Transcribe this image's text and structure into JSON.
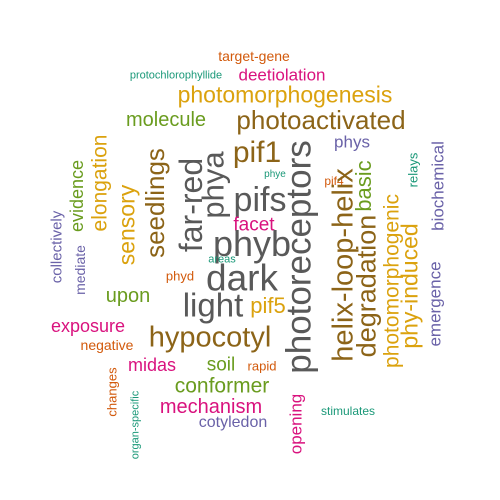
{
  "colors": {
    "gray": "#595959",
    "brown": "#8C6418",
    "gold": "#DBA20E",
    "green": "#6A9C1F",
    "orange": "#D2590B",
    "teal": "#1A9878",
    "purple": "#6A62A8",
    "magenta": "#D9127E"
  },
  "words": [
    {
      "text": "target-gene",
      "color": "orange",
      "rotated": false
    },
    {
      "text": "protochlorophyllide",
      "color": "teal",
      "rotated": false
    },
    {
      "text": "deetiolation",
      "color": "magenta",
      "rotated": false
    },
    {
      "text": "photomorphogenesis",
      "color": "gold",
      "rotated": false
    },
    {
      "text": "molecule",
      "color": "green",
      "rotated": false
    },
    {
      "text": "photoactivated",
      "color": "brown",
      "rotated": false
    },
    {
      "text": "phys",
      "color": "purple",
      "rotated": false
    },
    {
      "text": "pif1",
      "color": "brown",
      "rotated": false
    },
    {
      "text": "pifs",
      "color": "gray",
      "rotated": false
    },
    {
      "text": "phye",
      "color": "teal",
      "rotated": false
    },
    {
      "text": "pif4",
      "color": "orange",
      "rotated": false
    },
    {
      "text": "facet",
      "color": "magenta",
      "rotated": false
    },
    {
      "text": "phyb",
      "color": "gray",
      "rotated": false
    },
    {
      "text": "areas",
      "color": "teal",
      "rotated": false
    },
    {
      "text": "dark",
      "color": "gray",
      "rotated": false
    },
    {
      "text": "phyd",
      "color": "orange",
      "rotated": false
    },
    {
      "text": "upon",
      "color": "green",
      "rotated": false
    },
    {
      "text": "light",
      "color": "gray",
      "rotated": false
    },
    {
      "text": "pif5",
      "color": "gold",
      "rotated": false
    },
    {
      "text": "exposure",
      "color": "magenta",
      "rotated": false
    },
    {
      "text": "hypocotyl",
      "color": "brown",
      "rotated": false
    },
    {
      "text": "negative",
      "color": "orange",
      "rotated": false
    },
    {
      "text": "midas",
      "color": "magenta",
      "rotated": false
    },
    {
      "text": "soil",
      "color": "green",
      "rotated": false
    },
    {
      "text": "rapid",
      "color": "orange",
      "rotated": false
    },
    {
      "text": "conformer",
      "color": "green",
      "rotated": false
    },
    {
      "text": "mechanism",
      "color": "magenta",
      "rotated": false
    },
    {
      "text": "stimulates",
      "color": "teal",
      "rotated": false
    },
    {
      "text": "cotyledon",
      "color": "purple",
      "rotated": false
    },
    {
      "text": "elongation",
      "color": "gold",
      "rotated": true
    },
    {
      "text": "evidence",
      "color": "green",
      "rotated": true
    },
    {
      "text": "sensory",
      "color": "gold",
      "rotated": true
    },
    {
      "text": "seedlings",
      "color": "brown",
      "rotated": true
    },
    {
      "text": "far-red",
      "color": "gray",
      "rotated": true
    },
    {
      "text": "phya",
      "color": "gray",
      "rotated": true
    },
    {
      "text": "photoreceptors",
      "color": "gray",
      "rotated": true
    },
    {
      "text": "helix-loop-helix",
      "color": "brown",
      "rotated": true
    },
    {
      "text": "basic",
      "color": "green",
      "rotated": true
    },
    {
      "text": "degradation",
      "color": "brown",
      "rotated": true
    },
    {
      "text": "photomorphogenic",
      "color": "gold",
      "rotated": true
    },
    {
      "text": "phy-induced",
      "color": "gold",
      "rotated": true
    },
    {
      "text": "relays",
      "color": "teal",
      "rotated": true
    },
    {
      "text": "biochemical",
      "color": "purple",
      "rotated": true
    },
    {
      "text": "emergence",
      "color": "purple",
      "rotated": true
    },
    {
      "text": "collectively",
      "color": "purple",
      "rotated": true
    },
    {
      "text": "mediate",
      "color": "purple",
      "rotated": true
    },
    {
      "text": "changes",
      "color": "orange",
      "rotated": true
    },
    {
      "text": "organ-specific",
      "color": "teal",
      "rotated": true
    },
    {
      "text": "opening",
      "color": "magenta",
      "rotated": true
    }
  ]
}
